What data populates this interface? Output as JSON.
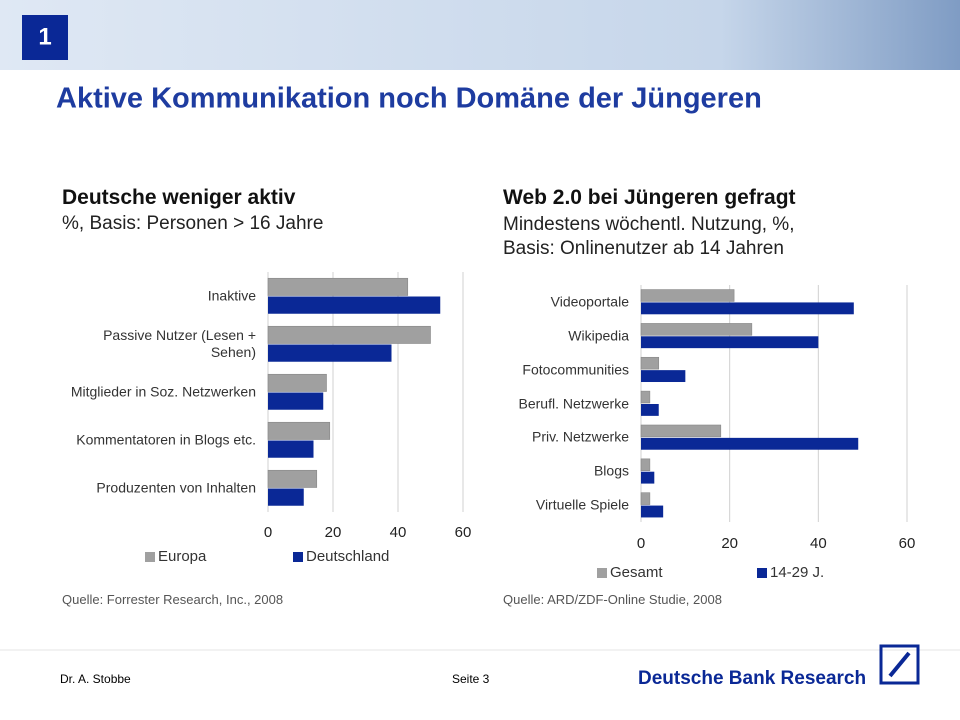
{
  "slide_number": "1",
  "title": "Aktive Kommunikation noch Domäne der Jüngeren",
  "chart_data": [
    {
      "type": "bar",
      "orientation": "horizontal",
      "title": "Deutsche weniger aktiv",
      "subtitle": "%, Basis: Personen > 16 Jahre",
      "categories": [
        "Inaktive",
        "Passive Nutzer (Lesen + Sehen)",
        "Mitglieder in Soz. Netzwerken",
        "Kommentatoren in Blogs etc.",
        "Produzenten von Inhalten"
      ],
      "series": [
        {
          "name": "Europa",
          "color": "#a0a0a0",
          "values": [
            43,
            50,
            18,
            19,
            15
          ]
        },
        {
          "name": "Deutschland",
          "color": "#0a2896",
          "values": [
            53,
            38,
            17,
            14,
            11
          ]
        }
      ],
      "xlim": [
        0,
        60
      ],
      "xticks": [
        0,
        20,
        40,
        60
      ],
      "grid": true,
      "source": "Quelle: Forrester Research, Inc., 2008"
    },
    {
      "type": "bar",
      "orientation": "horizontal",
      "title": "Web 2.0 bei Jüngeren gefragt",
      "subtitle": "Mindestens wöchentl. Nutzung, %, Basis: Onlinenutzer ab 14 Jahren",
      "categories": [
        "Videoportale",
        "Wikipedia",
        "Fotocommunities",
        "Berufl. Netzwerke",
        "Priv. Netzwerke",
        "Blogs",
        "Virtuelle Spiele"
      ],
      "series": [
        {
          "name": "Gesamt",
          "color": "#a0a0a0",
          "values": [
            21,
            25,
            4,
            2,
            18,
            2,
            2
          ]
        },
        {
          "name": "14-29 J.",
          "color": "#0a2896",
          "values": [
            48,
            40,
            10,
            4,
            49,
            3,
            5
          ]
        }
      ],
      "xlim": [
        0,
        60
      ],
      "xticks": [
        0,
        20,
        40,
        60
      ],
      "grid": true,
      "source": "Quelle: ARD/ZDF-Online Studie, 2008"
    }
  ],
  "footer": {
    "author": "Dr. A. Stobbe",
    "page": "Seite 3",
    "logo": "Deutsche Bank Research"
  }
}
